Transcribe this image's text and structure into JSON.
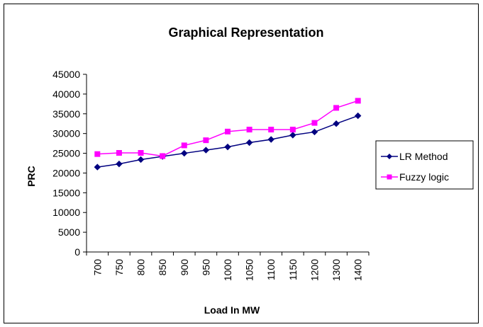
{
  "chart_data": {
    "type": "line",
    "title": "Graphical Representation",
    "xlabel": "Load In MW",
    "ylabel": "PRC",
    "categories": [
      "700",
      "750",
      "800",
      "850",
      "900",
      "950",
      "1000",
      "1050",
      "1100",
      "1150",
      "1200",
      "1300",
      "1400"
    ],
    "ylim": [
      0,
      45000
    ],
    "yticks": [
      "0",
      "5000",
      "10000",
      "15000",
      "20000",
      "25000",
      "30000",
      "35000",
      "40000",
      "45000"
    ],
    "grid": false,
    "legend_position": "right",
    "series": [
      {
        "name": "LR Method",
        "color": "#000080",
        "marker": "diamond",
        "values": [
          21500,
          22300,
          23400,
          24200,
          25000,
          25800,
          26600,
          27700,
          28500,
          29600,
          30400,
          32500,
          34500
        ]
      },
      {
        "name": "Fuzzy logic",
        "color": "#ff00ff",
        "marker": "square",
        "values": [
          24800,
          25100,
          25100,
          24300,
          27000,
          28300,
          30500,
          31000,
          31000,
          31000,
          32700,
          36500,
          38300
        ]
      }
    ]
  }
}
